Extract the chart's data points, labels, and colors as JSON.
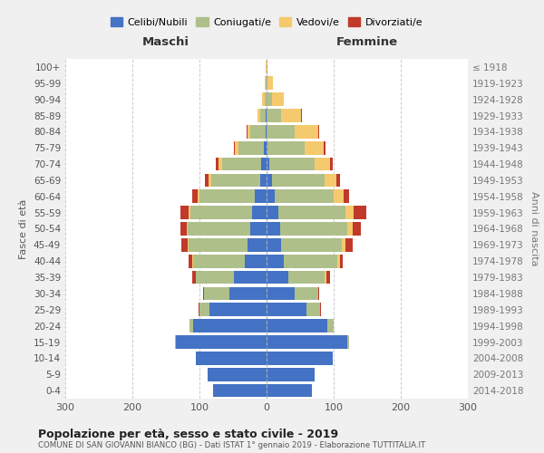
{
  "age_groups": [
    "0-4",
    "5-9",
    "10-14",
    "15-19",
    "20-24",
    "25-29",
    "30-34",
    "35-39",
    "40-44",
    "45-49",
    "50-54",
    "55-59",
    "60-64",
    "65-69",
    "70-74",
    "75-79",
    "80-84",
    "85-89",
    "90-94",
    "95-99",
    "100+"
  ],
  "birth_years": [
    "2014-2018",
    "2009-2013",
    "2004-2008",
    "1999-2003",
    "1994-1998",
    "1989-1993",
    "1984-1988",
    "1979-1983",
    "1974-1978",
    "1969-1973",
    "1964-1968",
    "1959-1963",
    "1954-1958",
    "1949-1953",
    "1944-1948",
    "1939-1943",
    "1934-1938",
    "1929-1933",
    "1924-1928",
    "1919-1923",
    "≤ 1918"
  ],
  "colors": {
    "celibi": "#4472C4",
    "coniugati": "#AEBF8A",
    "vedovi": "#F5C96E",
    "divorziati": "#C0392B"
  },
  "maschi": {
    "celibi": [
      80,
      88,
      105,
      135,
      110,
      85,
      55,
      48,
      32,
      28,
      25,
      22,
      18,
      10,
      8,
      4,
      2,
      1,
      0,
      0,
      0
    ],
    "coniugati": [
      0,
      0,
      0,
      2,
      5,
      15,
      38,
      58,
      78,
      88,
      92,
      92,
      82,
      72,
      58,
      38,
      22,
      8,
      3,
      1,
      0
    ],
    "vedovi": [
      0,
      0,
      0,
      0,
      0,
      0,
      0,
      0,
      1,
      1,
      2,
      2,
      3,
      5,
      5,
      5,
      5,
      5,
      4,
      2,
      1
    ],
    "divorziati": [
      0,
      0,
      0,
      0,
      0,
      1,
      2,
      5,
      5,
      10,
      10,
      12,
      8,
      5,
      5,
      2,
      1,
      0,
      0,
      0,
      0
    ]
  },
  "femmine": {
    "celibi": [
      68,
      72,
      98,
      120,
      90,
      60,
      42,
      32,
      26,
      22,
      20,
      18,
      12,
      8,
      4,
      2,
      0,
      0,
      0,
      0,
      0
    ],
    "coniugati": [
      0,
      0,
      0,
      3,
      10,
      20,
      35,
      55,
      80,
      90,
      100,
      100,
      88,
      78,
      68,
      55,
      42,
      22,
      8,
      2,
      0
    ],
    "vedovi": [
      0,
      0,
      0,
      0,
      0,
      0,
      0,
      2,
      3,
      5,
      8,
      12,
      15,
      18,
      22,
      28,
      35,
      30,
      18,
      8,
      2
    ],
    "divorziati": [
      0,
      0,
      0,
      0,
      0,
      1,
      2,
      5,
      5,
      12,
      12,
      18,
      8,
      5,
      5,
      3,
      2,
      1,
      0,
      0,
      0
    ]
  },
  "title": "Popolazione per età, sesso e stato civile - 2019",
  "subtitle": "COMUNE DI SAN GIOVANNI BIANCO (BG) - Dati ISTAT 1° gennaio 2019 - Elaborazione TUTTITALIA.IT",
  "ylabel": "Fasce di età",
  "ylabel_right": "Anni di nascita",
  "xlabel_left": "Maschi",
  "xlabel_right": "Femmine",
  "xlim": 300,
  "legend_labels": [
    "Celibi/Nubili",
    "Coniugati/e",
    "Vedovi/e",
    "Divorziati/e"
  ],
  "bg_color": "#f0f0f0",
  "plot_bg_color": "#ffffff"
}
